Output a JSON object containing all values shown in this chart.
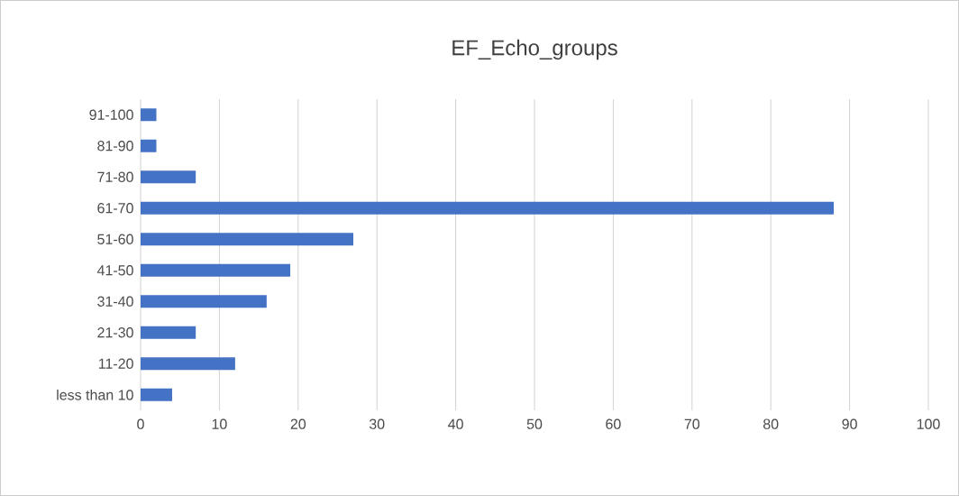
{
  "chart_data": {
    "type": "bar",
    "orientation": "horizontal",
    "title": "EF_Echo_groups",
    "categories": [
      "91-100",
      "81-90",
      "71-80",
      "61-70",
      "51-60",
      "41-50",
      "31-40",
      "21-30",
      "11-20",
      "less than 10"
    ],
    "values": [
      2,
      2,
      7,
      88,
      27,
      19,
      16,
      7,
      12,
      4
    ],
    "color": "#4472c4",
    "xlim": [
      0,
      100
    ],
    "xticks": [
      0,
      10,
      20,
      30,
      40,
      50,
      60,
      70,
      80,
      90,
      100
    ],
    "grid": "x"
  }
}
